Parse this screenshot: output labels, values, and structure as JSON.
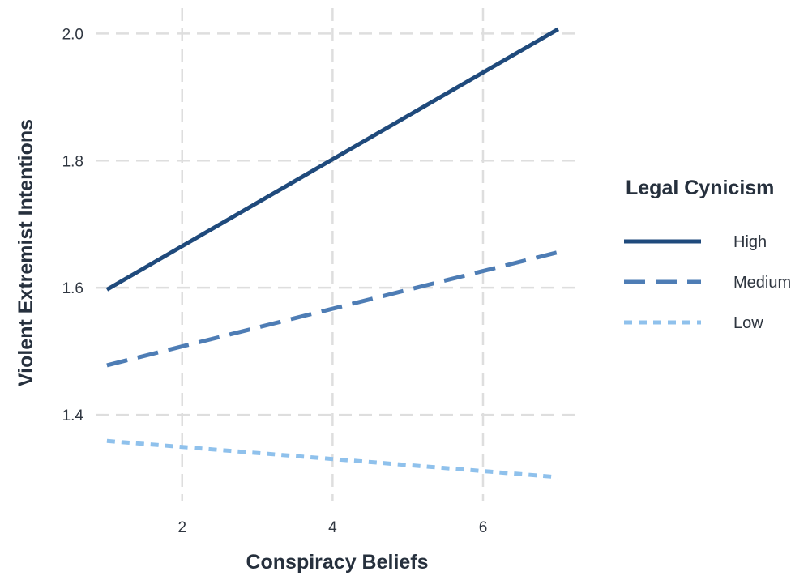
{
  "chart_data": {
    "type": "line",
    "xlabel": "Conspiracy Beliefs",
    "ylabel": "Violent Extremist Intentions",
    "xlim": [
      0.85,
      7.25
    ],
    "ylim": [
      1.265,
      2.04
    ],
    "x_ticks": [
      2,
      4,
      6
    ],
    "y_ticks": [
      1.4,
      1.6,
      1.8,
      2.0
    ],
    "x_tick_labels": [
      "2",
      "4",
      "6"
    ],
    "y_tick_labels": [
      "1.4",
      "1.6",
      "1.8",
      "2.0"
    ],
    "grid": true,
    "legend": {
      "title": "Legal Cynicism",
      "position": "right"
    },
    "series": [
      {
        "name": "High",
        "x": [
          1,
          7
        ],
        "y": [
          1.597,
          2.007
        ],
        "color": "#1f4a7c",
        "dash": "solid"
      },
      {
        "name": "Medium",
        "x": [
          1,
          7
        ],
        "y": [
          1.478,
          1.656
        ],
        "color": "#4e7db5",
        "dash": "dashed"
      },
      {
        "name": "Low",
        "x": [
          1,
          7
        ],
        "y": [
          1.359,
          1.302
        ],
        "color": "#8fc1ec",
        "dash": "dotted"
      }
    ]
  }
}
